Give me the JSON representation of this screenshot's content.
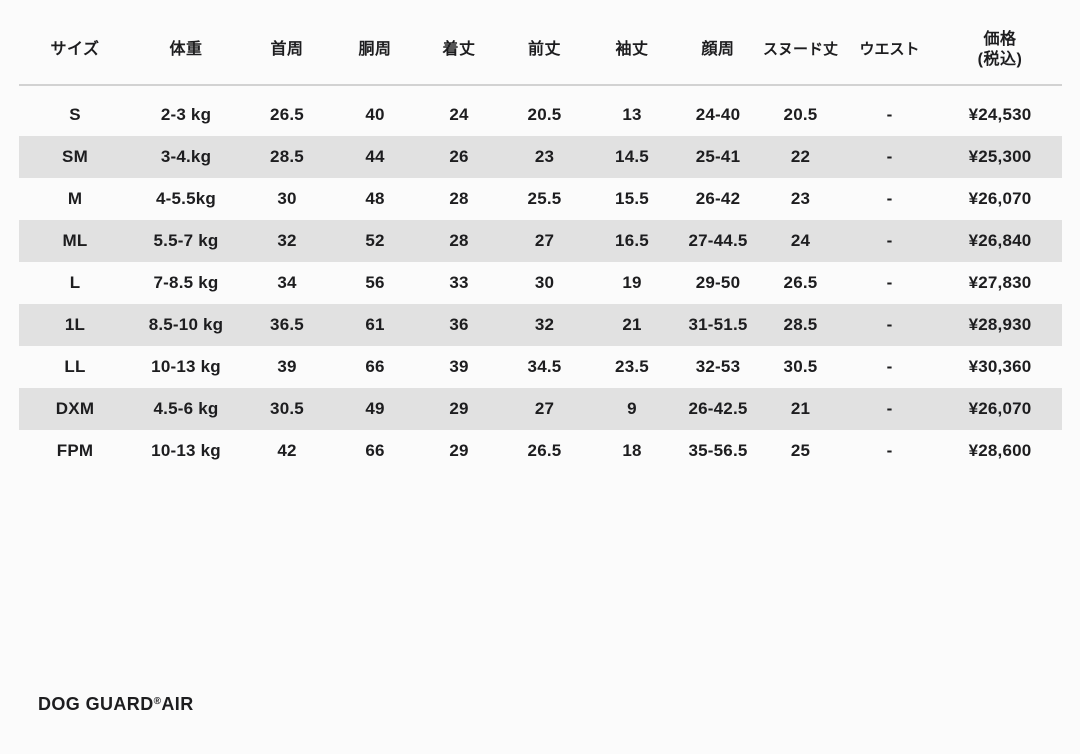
{
  "colors": {
    "background": "#fbfbfb",
    "stripe": "#e1e1e1",
    "header_rule": "#d2d2d2",
    "text": "#1d1d1f"
  },
  "table": {
    "column_keys": [
      "size",
      "weight",
      "neck",
      "chest",
      "length",
      "front",
      "sleeve",
      "face",
      "snood",
      "waist",
      "price"
    ],
    "headers": [
      "サイズ",
      "体重",
      "首周",
      "胴周",
      "着丈",
      "前丈",
      "袖丈",
      "顔周",
      "スヌード丈",
      "ウエスト",
      "価格\n(税込)"
    ],
    "rows": [
      [
        "S",
        "2-3 kg",
        "26.5",
        "40",
        "24",
        "20.5",
        "13",
        "24-40",
        "20.5",
        "-",
        "¥24,530"
      ],
      [
        "SM",
        "3-4.kg",
        "28.5",
        "44",
        "26",
        "23",
        "14.5",
        "25-41",
        "22",
        "-",
        "¥25,300"
      ],
      [
        "M",
        "4-5.5kg",
        "30",
        "48",
        "28",
        "25.5",
        "15.5",
        "26-42",
        "23",
        "-",
        "¥26,070"
      ],
      [
        "ML",
        "5.5-7 kg",
        "32",
        "52",
        "28",
        "27",
        "16.5",
        "27-44.5",
        "24",
        "-",
        "¥26,840"
      ],
      [
        "L",
        "7-8.5 kg",
        "34",
        "56",
        "33",
        "30",
        "19",
        "29-50",
        "26.5",
        "-",
        "¥27,830"
      ],
      [
        "1L",
        "8.5-10 kg",
        "36.5",
        "61",
        "36",
        "32",
        "21",
        "31-51.5",
        "28.5",
        "-",
        "¥28,930"
      ],
      [
        "LL",
        "10-13 kg",
        "39",
        "66",
        "39",
        "34.5",
        "23.5",
        "32-53",
        "30.5",
        "-",
        "¥30,360"
      ],
      [
        "DXM",
        "4.5-6 kg",
        "30.5",
        "49",
        "29",
        "27",
        "9",
        "26-42.5",
        "21",
        "-",
        "¥26,070"
      ],
      [
        "FPM",
        "10-13 kg",
        "42",
        "66",
        "29",
        "26.5",
        "18",
        "35-56.5",
        "25",
        "-",
        "¥28,600"
      ]
    ]
  },
  "footer": {
    "brand_name": "DOG GUARD",
    "brand_reg": "®",
    "brand_suffix": "AIR"
  }
}
